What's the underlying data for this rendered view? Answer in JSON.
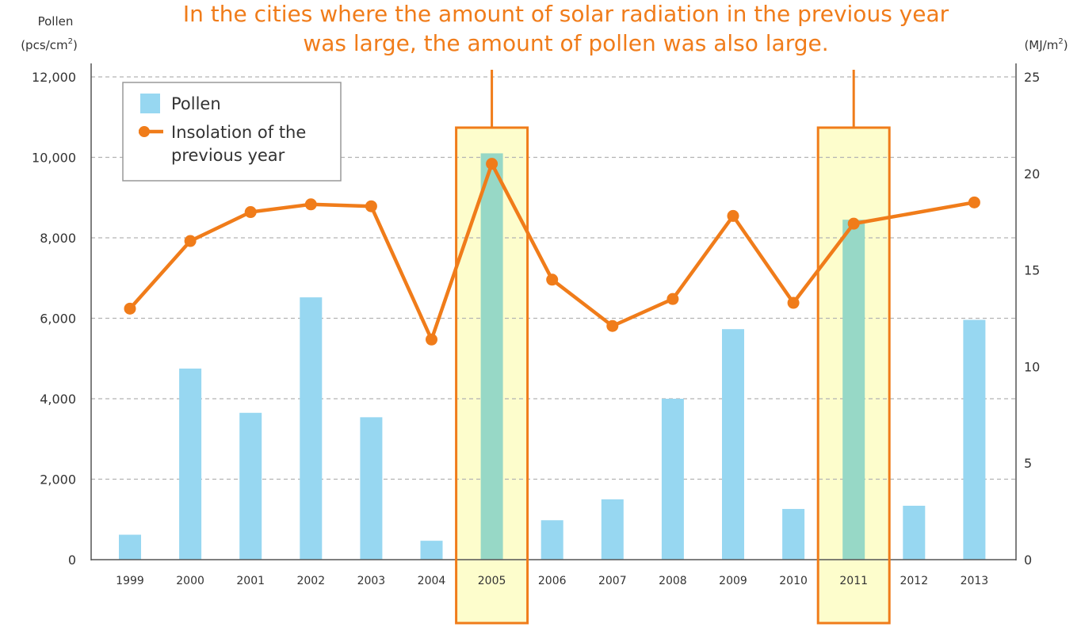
{
  "chart_data": {
    "type": "bar+line",
    "title_lines": [
      "In the cities where the amount of solar radiation in the previous year",
      "was large, the amount of pollen was also large."
    ],
    "ylabel_left": "Pollen",
    "ylabel_left_unit": "(pcs/cm",
    "ylabel_left_unit_sup": "2",
    "ylabel_left_unit_end": ")",
    "ylabel_right_unit": "(MJ/m",
    "ylabel_right_unit_sup": "2",
    "ylabel_right_unit_end": ")",
    "ylim_left": [
      0,
      12000
    ],
    "yticks_left": [
      "0",
      "2,000",
      "4,000",
      "6,000",
      "8,000",
      "10,000",
      "12,000"
    ],
    "yticks_left_values": [
      0,
      2000,
      4000,
      6000,
      8000,
      10000,
      12000
    ],
    "ylim_right": [
      0,
      25
    ],
    "yticks_right": [
      "0",
      "5",
      "10",
      "15",
      "20",
      "25"
    ],
    "yticks_right_values": [
      0,
      5,
      10,
      15,
      20,
      25
    ],
    "grid": "horizontal-dashed",
    "legend_position": "top-left",
    "categories": [
      "1999",
      "2000",
      "2001",
      "2002",
      "2003",
      "2004",
      "2005",
      "2006",
      "2007",
      "2008",
      "2009",
      "2010",
      "2011",
      "2012",
      "2013"
    ],
    "series": [
      {
        "name": "Pollen",
        "type": "bar",
        "axis": "left",
        "color": "#97d7f1",
        "values": [
          620,
          4750,
          3650,
          6520,
          3540,
          470,
          10100,
          980,
          1500,
          4000,
          5730,
          1260,
          8450,
          1340,
          5960
        ]
      },
      {
        "name": "Insolation of the previous year",
        "name_lines": [
          "Insolation of the",
          "previous year"
        ],
        "type": "line",
        "axis": "right",
        "color": "#f07c1a",
        "values": [
          13.0,
          16.5,
          18.0,
          18.4,
          18.3,
          11.4,
          20.5,
          14.5,
          12.1,
          13.5,
          17.8,
          13.3,
          17.4,
          null,
          18.5
        ]
      }
    ],
    "highlighted_categories": [
      "2005",
      "2011"
    ],
    "colors": {
      "bar": "#97d7f1",
      "bar_highlighted": "#97d8c6",
      "highlight_fill": "#fdfdcc",
      "accent": "#f07c1a",
      "grid": "#b3b3b3",
      "axis": "#555555"
    }
  }
}
